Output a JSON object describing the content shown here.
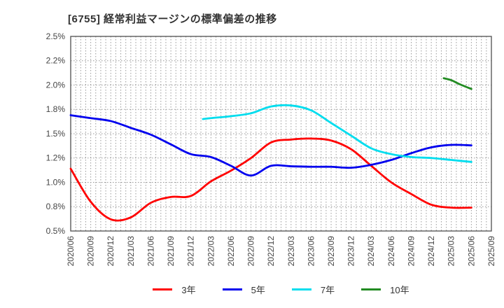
{
  "chart": {
    "title": "[6755]  経常利益マージンの標準偏差の推移"
  },
  "chart_data": {
    "type": "line",
    "title": "[6755]  経常利益マージンの標準偏差の推移",
    "x_categories": [
      "2020/06",
      "2020/09",
      "2020/12",
      "2021/03",
      "2021/06",
      "2021/09",
      "2021/12",
      "2022/03",
      "2022/06",
      "2022/09",
      "2022/12",
      "2023/03",
      "2023/06",
      "2023/09",
      "2023/12",
      "2024/03",
      "2024/06",
      "2024/09",
      "2024/12",
      "2025/03",
      "2025/06",
      "2025/09"
    ],
    "x_minor_gridlines_per_interval": 3,
    "y_axis": {
      "min": 0.5,
      "max": 2.5,
      "step": 0.25,
      "tick_labels": [
        "0.5%",
        "0.8%",
        "1.0%",
        "1.2%",
        "1.5%",
        "1.8%",
        "2.0%",
        "2.2%",
        "2.5%"
      ],
      "unit": "%"
    },
    "grid": true,
    "legend_position": "bottom",
    "series": [
      {
        "name": "3年",
        "color": "#FF0000",
        "points": [
          [
            0,
            1.14
          ],
          [
            1,
            0.8
          ],
          [
            2,
            0.62
          ],
          [
            3,
            0.64
          ],
          [
            4,
            0.79
          ],
          [
            5,
            0.85
          ],
          [
            6,
            0.86
          ],
          [
            7,
            1.01
          ],
          [
            8,
            1.12
          ],
          [
            9,
            1.25
          ],
          [
            10,
            1.41
          ],
          [
            11,
            1.44
          ],
          [
            12,
            1.45
          ],
          [
            13,
            1.43
          ],
          [
            14,
            1.34
          ],
          [
            15,
            1.17
          ],
          [
            16,
            1.0
          ],
          [
            17,
            0.88
          ],
          [
            18,
            0.77
          ],
          [
            19,
            0.74
          ],
          [
            20,
            0.74
          ]
        ]
      },
      {
        "name": "5年",
        "color": "#0000EE",
        "points": [
          [
            0,
            1.69
          ],
          [
            1,
            1.66
          ],
          [
            2,
            1.63
          ],
          [
            3,
            1.56
          ],
          [
            4,
            1.49
          ],
          [
            5,
            1.39
          ],
          [
            6,
            1.29
          ],
          [
            7,
            1.26
          ],
          [
            8,
            1.17
          ],
          [
            9,
            1.07
          ],
          [
            10,
            1.17
          ],
          [
            11,
            1.165
          ],
          [
            12,
            1.16
          ],
          [
            13,
            1.16
          ],
          [
            14,
            1.15
          ],
          [
            15,
            1.18
          ],
          [
            16,
            1.23
          ],
          [
            17,
            1.3
          ],
          [
            18,
            1.36
          ],
          [
            19,
            1.385
          ],
          [
            20,
            1.38
          ]
        ]
      },
      {
        "name": "7年",
        "color": "#00DDEE",
        "points": [
          [
            6.6,
            1.65
          ],
          [
            7,
            1.66
          ],
          [
            8,
            1.68
          ],
          [
            9,
            1.71
          ],
          [
            10,
            1.78
          ],
          [
            11,
            1.79
          ],
          [
            12,
            1.74
          ],
          [
            13,
            1.61
          ],
          [
            14,
            1.48
          ],
          [
            15,
            1.35
          ],
          [
            16,
            1.29
          ],
          [
            17,
            1.26
          ],
          [
            18,
            1.25
          ],
          [
            19,
            1.23
          ],
          [
            20,
            1.21
          ]
        ]
      },
      {
        "name": "10年",
        "color": "#228B22",
        "points": [
          [
            18.62,
            2.07
          ],
          [
            19,
            2.05
          ],
          [
            19.4,
            2.01
          ],
          [
            20,
            1.96
          ]
        ]
      }
    ]
  },
  "styles": {
    "background": "#FFFFFF",
    "title_color": "#333333",
    "axis_label_color": "#444444",
    "grid_color": "#999999",
    "border_color": "#5A5A5A"
  }
}
